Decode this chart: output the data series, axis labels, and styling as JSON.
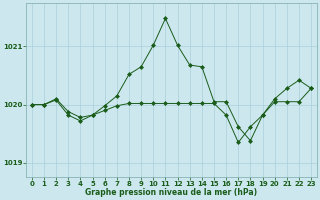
{
  "title": "Graphe pression niveau de la mer (hPa)",
  "background_color": "#cce8ee",
  "grid_color": "#aacfda",
  "line_color": "#1a5c1a",
  "xlim": [
    -0.5,
    23.5
  ],
  "ylim": [
    1018.75,
    1021.75
  ],
  "yticks": [
    1019,
    1020,
    1021
  ],
  "xticks": [
    0,
    1,
    2,
    3,
    4,
    5,
    6,
    7,
    8,
    9,
    10,
    11,
    12,
    13,
    14,
    15,
    16,
    17,
    18,
    19,
    20,
    21,
    22,
    23
  ],
  "series1_x": [
    0,
    1,
    2,
    3,
    4,
    5,
    6,
    7,
    8,
    9,
    10,
    11,
    12,
    13,
    14,
    15,
    16,
    17,
    18,
    19,
    20,
    21,
    22,
    23
  ],
  "series1_y": [
    1020.0,
    1020.0,
    1020.1,
    1019.88,
    1019.78,
    1019.82,
    1019.98,
    1020.15,
    1020.52,
    1020.65,
    1021.02,
    1021.48,
    1021.02,
    1020.68,
    1020.65,
    1020.05,
    1020.05,
    1019.62,
    1019.38,
    1019.82,
    1020.1,
    1020.28,
    1020.42,
    1020.28
  ],
  "series2_x": [
    0,
    1,
    2,
    3,
    4,
    5,
    6,
    7,
    8,
    9,
    10,
    11,
    12,
    13,
    14,
    15,
    16,
    17,
    18,
    19,
    20,
    21,
    22,
    23
  ],
  "series2_y": [
    1020.0,
    1020.0,
    1020.08,
    1019.82,
    1019.72,
    1019.82,
    1019.9,
    1019.98,
    1020.02,
    1020.02,
    1020.02,
    1020.02,
    1020.02,
    1020.02,
    1020.02,
    1020.02,
    1019.82,
    1019.35,
    1019.62,
    1019.82,
    1020.05,
    1020.05,
    1020.05,
    1020.28
  ]
}
